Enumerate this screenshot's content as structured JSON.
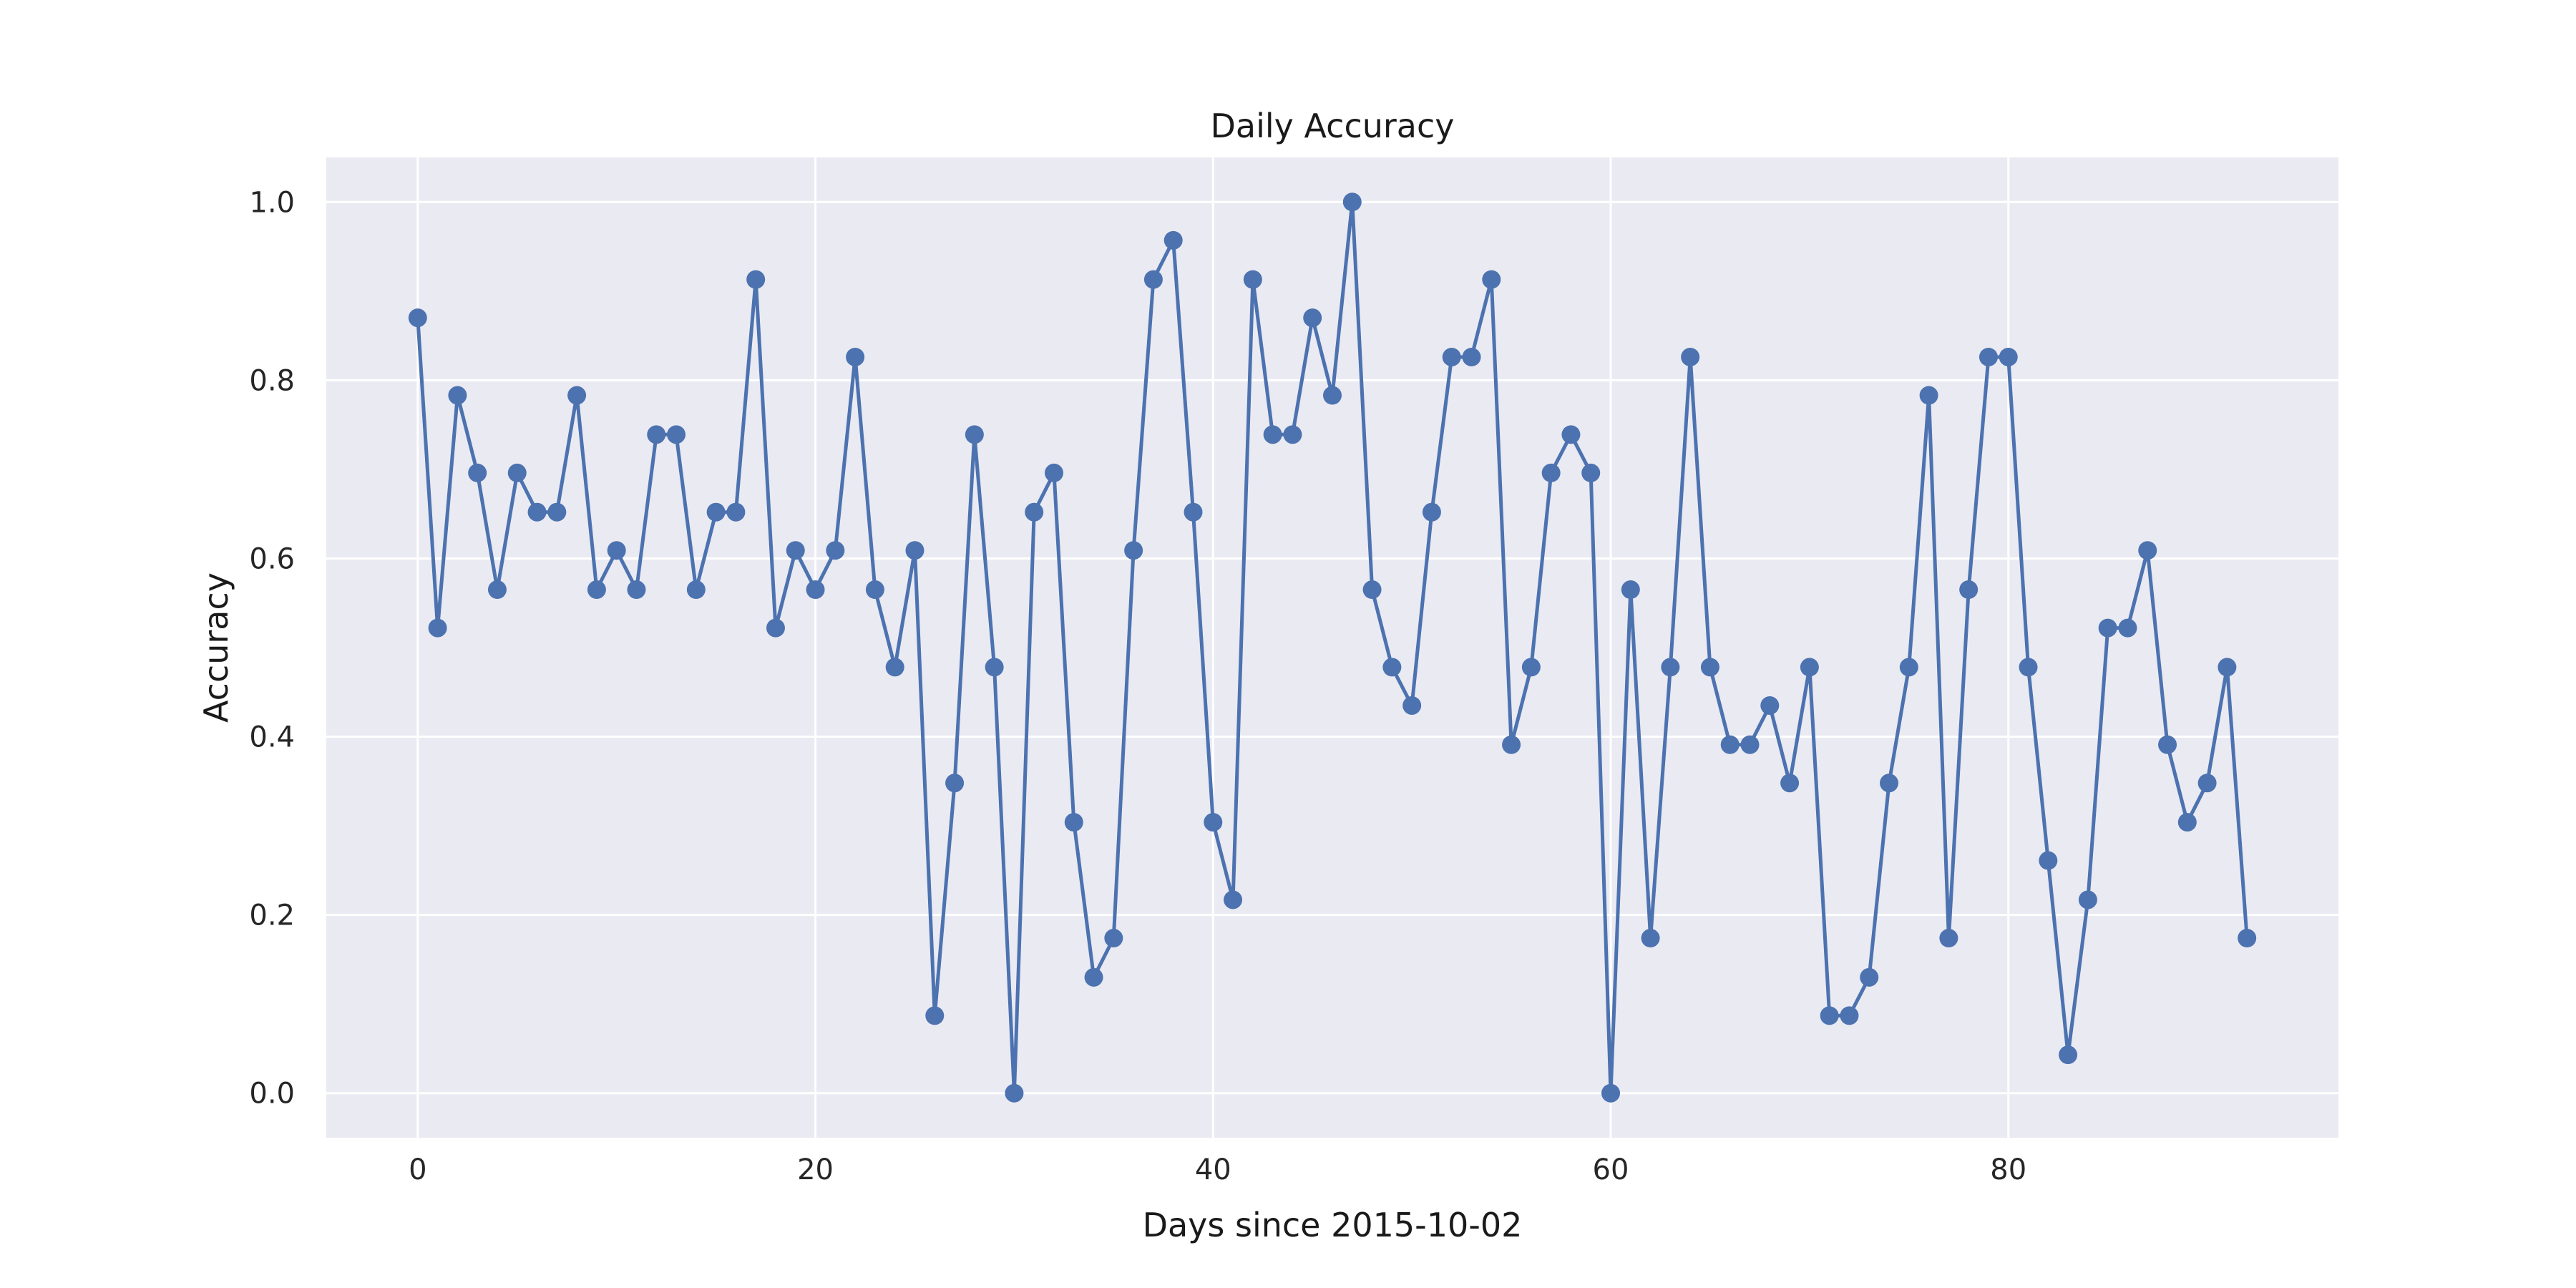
{
  "chart_data": {
    "type": "line",
    "title": "Daily Accuracy",
    "xlabel": "Days since 2015-10-02",
    "ylabel": "Accuracy",
    "xlim": [
      -4.6,
      96.6
    ],
    "ylim": [
      -0.05,
      1.05
    ],
    "xticks": [
      0,
      20,
      40,
      60,
      80
    ],
    "xtick_labels": [
      "0",
      "20",
      "40",
      "60",
      "80"
    ],
    "yticks": [
      0.0,
      0.2,
      0.4,
      0.6,
      0.8,
      1.0
    ],
    "ytick_labels": [
      "0.0",
      "0.2",
      "0.4",
      "0.6",
      "0.8",
      "1.0"
    ],
    "grid": true,
    "marker": "circle",
    "colors": {
      "line": "#4c72b0",
      "background": "#eaeaf2",
      "grid": "#ffffff"
    },
    "series": [
      {
        "x": [
          0,
          1,
          2,
          3,
          4,
          5,
          6,
          7,
          8,
          9,
          10,
          11,
          12,
          13,
          14,
          15,
          16,
          17,
          18,
          19,
          20,
          21,
          22,
          23,
          24,
          25,
          26,
          27,
          28,
          29,
          30,
          31,
          32,
          33,
          34,
          35,
          36,
          37,
          38,
          39,
          40,
          41,
          42,
          43,
          44,
          45,
          46,
          47,
          48,
          49,
          50,
          51,
          52,
          53,
          54,
          55,
          56,
          57,
          58,
          59,
          60,
          61,
          62,
          63,
          64,
          65,
          66,
          67,
          68,
          69,
          70,
          71,
          72,
          73,
          74,
          75,
          76,
          77,
          78,
          79,
          80,
          81,
          82,
          83,
          84,
          85,
          86,
          87,
          88,
          89,
          90,
          91,
          92
        ],
        "values": [
          0.87,
          0.522,
          0.783,
          0.696,
          0.565,
          0.696,
          0.652,
          0.652,
          0.783,
          0.565,
          0.609,
          0.565,
          0.739,
          0.739,
          0.565,
          0.652,
          0.652,
          0.913,
          0.522,
          0.609,
          0.565,
          0.609,
          0.826,
          0.565,
          0.478,
          0.609,
          0.087,
          0.348,
          0.739,
          0.478,
          0.0,
          0.652,
          0.696,
          0.304,
          0.13,
          0.174,
          0.609,
          0.913,
          0.957,
          0.652,
          0.304,
          0.217,
          0.913,
          0.739,
          0.739,
          0.87,
          0.783,
          1.0,
          0.565,
          0.478,
          0.435,
          0.652,
          0.826,
          0.826,
          0.913,
          0.391,
          0.478,
          0.696,
          0.739,
          0.696,
          0.0,
          0.565,
          0.174,
          0.478,
          0.826,
          0.478,
          0.391,
          0.391,
          0.435,
          0.348,
          0.478,
          0.087,
          0.087,
          0.13,
          0.348,
          0.478,
          0.783,
          0.174,
          0.565,
          0.826,
          0.826,
          0.478,
          0.261,
          0.043,
          0.217,
          0.522,
          0.522,
          0.609,
          0.391,
          0.304,
          0.348,
          0.478,
          0.174
        ]
      }
    ]
  }
}
